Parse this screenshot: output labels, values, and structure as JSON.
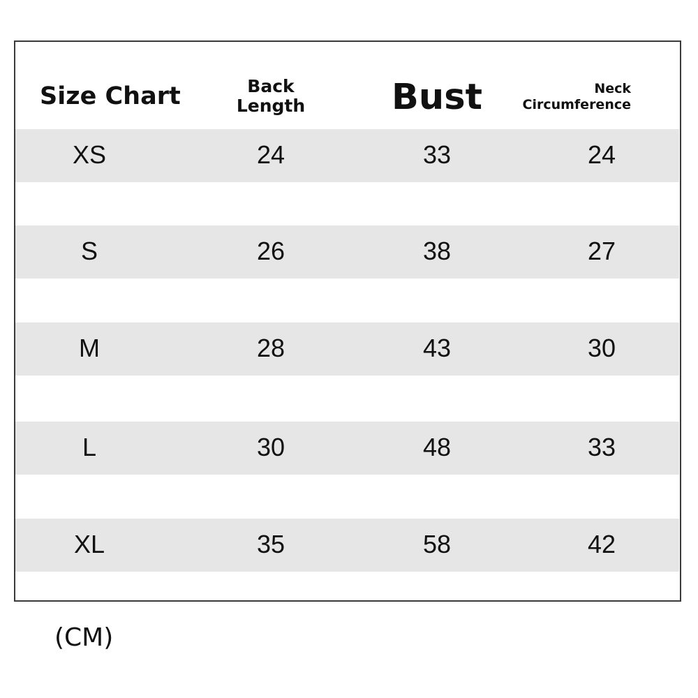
{
  "header": {
    "title": "Size Chart",
    "columns": [
      "Back\nLength",
      "Bust",
      "Neck\nCircumference"
    ],
    "back_length_1": "Back",
    "back_length_2": "Length",
    "bust": "Bust",
    "neck_1": "Neck",
    "neck_2": "Circumference"
  },
  "rows": [
    {
      "size": "XS",
      "back_length": "24",
      "bust": "33",
      "neck": "24"
    },
    {
      "size": "S",
      "back_length": "26",
      "bust": "38",
      "neck": "27"
    },
    {
      "size": "M",
      "back_length": "28",
      "bust": "43",
      "neck": "30"
    },
    {
      "size": "L",
      "back_length": "30",
      "bust": "48",
      "neck": "33"
    },
    {
      "size": "XL",
      "back_length": "35",
      "bust": "58",
      "neck": "42"
    }
  ],
  "unit": "(CM)",
  "colors": {
    "row_band": "#e6e6e6",
    "border": "#3a3a3a",
    "text": "#111111"
  }
}
